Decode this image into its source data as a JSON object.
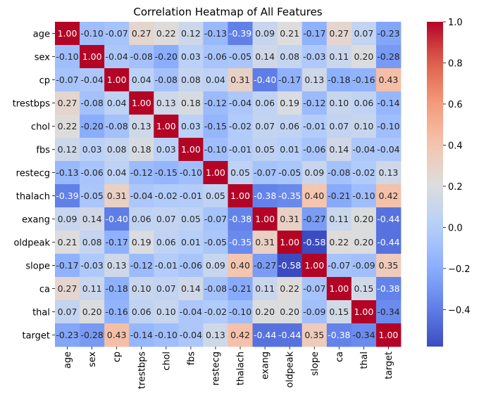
{
  "chart_data": {
    "type": "heatmap",
    "title": "Correlation Heatmap of All Features",
    "xlabel": "",
    "ylabel": "",
    "labels": [
      "age",
      "sex",
      "cp",
      "trestbps",
      "chol",
      "fbs",
      "restecg",
      "thalach",
      "exang",
      "oldpeak",
      "slope",
      "ca",
      "thal",
      "target"
    ],
    "matrix": [
      [
        1.0,
        -0.1,
        -0.07,
        0.27,
        0.22,
        0.12,
        -0.13,
        -0.39,
        0.09,
        0.21,
        -0.17,
        0.27,
        0.07,
        -0.23
      ],
      [
        -0.1,
        1.0,
        -0.04,
        -0.08,
        -0.2,
        0.03,
        -0.06,
        -0.05,
        0.14,
        0.08,
        -0.03,
        0.11,
        0.2,
        -0.28
      ],
      [
        -0.07,
        -0.04,
        1.0,
        0.04,
        -0.08,
        0.08,
        0.04,
        0.31,
        -0.4,
        -0.17,
        0.13,
        -0.18,
        -0.16,
        0.43
      ],
      [
        0.27,
        -0.08,
        0.04,
        1.0,
        0.13,
        0.18,
        -0.12,
        -0.04,
        0.06,
        0.19,
        -0.12,
        0.1,
        0.06,
        -0.14
      ],
      [
        0.22,
        -0.2,
        -0.08,
        0.13,
        1.0,
        0.03,
        -0.15,
        -0.02,
        0.07,
        0.06,
        -0.01,
        0.07,
        0.1,
        -0.1
      ],
      [
        0.12,
        0.03,
        0.08,
        0.18,
        0.03,
        1.0,
        -0.1,
        -0.01,
        0.05,
        0.01,
        -0.06,
        0.14,
        -0.04,
        -0.04
      ],
      [
        -0.13,
        -0.06,
        0.04,
        -0.12,
        -0.15,
        -0.1,
        1.0,
        0.05,
        -0.07,
        -0.05,
        0.09,
        -0.08,
        -0.02,
        0.13
      ],
      [
        -0.39,
        -0.05,
        0.31,
        -0.04,
        -0.02,
        -0.01,
        0.05,
        1.0,
        -0.38,
        -0.35,
        0.4,
        -0.21,
        -0.1,
        0.42
      ],
      [
        0.09,
        0.14,
        -0.4,
        0.06,
        0.07,
        0.05,
        -0.07,
        -0.38,
        1.0,
        0.31,
        -0.27,
        0.11,
        0.2,
        -0.44
      ],
      [
        0.21,
        0.08,
        -0.17,
        0.19,
        0.06,
        0.01,
        -0.05,
        -0.35,
        0.31,
        1.0,
        -0.58,
        0.22,
        0.2,
        -0.44
      ],
      [
        -0.17,
        -0.03,
        0.13,
        -0.12,
        -0.01,
        -0.06,
        0.09,
        0.4,
        -0.27,
        -0.58,
        1.0,
        -0.07,
        -0.09,
        0.35
      ],
      [
        0.27,
        0.11,
        -0.18,
        0.1,
        0.07,
        0.14,
        -0.08,
        -0.21,
        0.11,
        0.22,
        -0.07,
        1.0,
        0.15,
        -0.38
      ],
      [
        0.07,
        0.2,
        -0.16,
        0.06,
        0.1,
        -0.04,
        -0.02,
        -0.1,
        0.2,
        0.2,
        -0.09,
        0.15,
        1.0,
        -0.34
      ],
      [
        -0.23,
        -0.28,
        0.43,
        -0.14,
        -0.1,
        -0.04,
        0.13,
        0.42,
        -0.44,
        -0.44,
        0.35,
        -0.38,
        -0.34,
        1.0
      ]
    ],
    "colormap": "coolwarm",
    "vmin": -0.58,
    "vmax": 1.0,
    "annotation_format": "0.00",
    "colorbar_ticks": [
      "1.0",
      "0.8",
      "0.6",
      "0.4",
      "0.2",
      "0.0",
      "−0.2",
      "−0.4"
    ],
    "colorbar_tick_values": [
      1.0,
      0.8,
      0.6,
      0.4,
      0.2,
      0.0,
      -0.2,
      -0.4
    ]
  }
}
